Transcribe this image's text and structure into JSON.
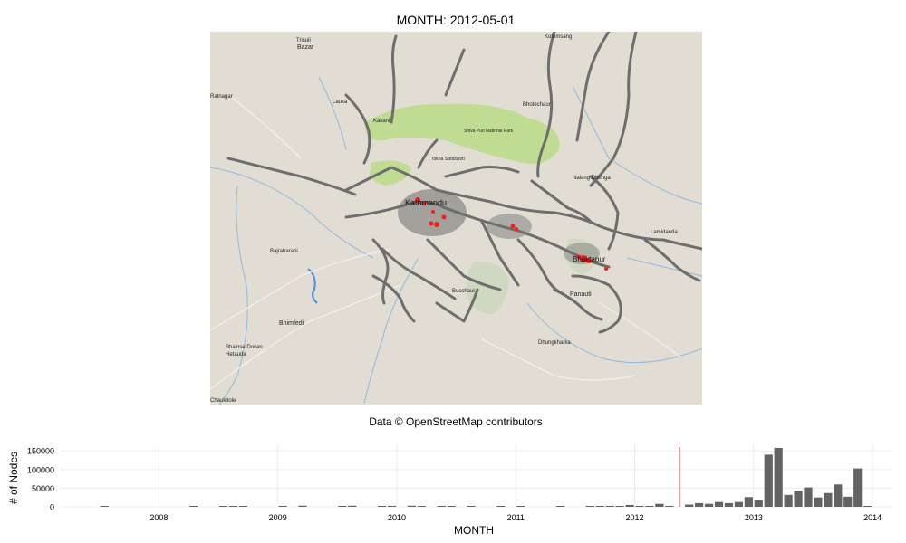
{
  "title": "MONTH: 2012-05-01",
  "caption": "Data © OpenStreetMap contributors",
  "map": {
    "labels": [
      {
        "text": "Trisuli"
      },
      {
        "text": "Bazar"
      },
      {
        "text": "Kutumsang"
      },
      {
        "text": "Ratnagar"
      },
      {
        "text": "Lauka"
      },
      {
        "text": "Bhotechaur"
      },
      {
        "text": "Kakani"
      },
      {
        "text": "Shiva Puri National Park"
      },
      {
        "text": "Tokha Saraswoti"
      },
      {
        "text": "Kathmandu"
      },
      {
        "text": "Bhaktapur"
      },
      {
        "text": "Nalang Dhunga"
      },
      {
        "text": "Lamidanda"
      },
      {
        "text": "Bajrabarahi"
      },
      {
        "text": "Bhimfedi"
      },
      {
        "text": "Bhainse Dovan"
      },
      {
        "text": "Hetauda"
      },
      {
        "text": "Bucchaul"
      },
      {
        "text": "Panauti"
      },
      {
        "text": "Dhungkharka"
      },
      {
        "text": "Chaukitole"
      }
    ],
    "colors": {
      "land": "#e1ddd3",
      "park": "#c0dc92",
      "protected": "#cfd8c0",
      "roads": "#6e6e6e",
      "nodes": "#ff1a1a",
      "water": "#8fb9e0"
    }
  },
  "chart_data": {
    "type": "bar",
    "xlabel": "MONTH",
    "ylabel": "# of Nodes",
    "y_ticks": [
      "0",
      "50000",
      "100000",
      "150000"
    ],
    "ylim": [
      0,
      170000
    ],
    "x_ticks": [
      "2008",
      "2009",
      "2010",
      "2011",
      "2012",
      "2013",
      "2014"
    ],
    "xlim": [
      "2007-03-01",
      "2014-03-01"
    ],
    "current_month": "2012-05-01",
    "marker_color": "#e8403c",
    "bar_color": "#636363",
    "months": [
      "2007-07",
      "2008-04",
      "2008-07",
      "2008-08",
      "2008-09",
      "2009-01",
      "2009-03",
      "2009-07",
      "2009-08",
      "2009-11",
      "2009-12",
      "2010-02",
      "2010-03",
      "2010-05",
      "2010-06",
      "2010-08",
      "2010-11",
      "2011-01",
      "2011-05",
      "2011-08",
      "2011-09",
      "2011-10",
      "2011-11",
      "2011-12",
      "2012-01",
      "2012-02",
      "2012-03",
      "2012-04",
      "2012-06",
      "2012-07",
      "2012-08",
      "2012-09",
      "2012-10",
      "2012-11",
      "2012-12",
      "2013-01",
      "2013-02",
      "2013-03",
      "2013-04",
      "2013-05",
      "2013-06",
      "2013-07",
      "2013-08",
      "2013-09",
      "2013-10",
      "2013-11",
      "2013-12"
    ],
    "values": [
      500,
      500,
      1000,
      800,
      500,
      500,
      3000,
      1500,
      3000,
      500,
      500,
      3000,
      2000,
      500,
      1500,
      2500,
      500,
      1500,
      500,
      2000,
      2500,
      1500,
      1000,
      5000,
      1500,
      1000,
      8000,
      500,
      6000,
      10000,
      8000,
      13000,
      10000,
      13000,
      26000,
      18000,
      140000,
      158000,
      32000,
      43000,
      52000,
      25000,
      37000,
      60000,
      27000,
      103000,
      2000
    ]
  }
}
